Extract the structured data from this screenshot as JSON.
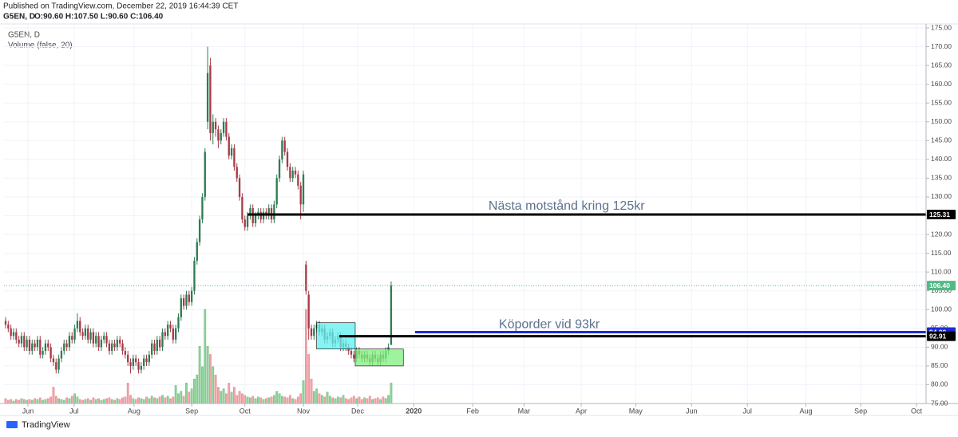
{
  "header": {
    "published": "Published on TradingView.com, December 22, 2019 16:44:39 CET",
    "ohlc": "O:90.60 H:107.50 L:90.60 C:106.40",
    "brand": "TradingView"
  },
  "chart_data": {
    "type": "candlestick",
    "title": "G5EN, D",
    "volume_label": "Volume (false, 20)",
    "up_color": "#2e7d52",
    "down_color": "#a83a48",
    "volume_up_color": "#8fd49a",
    "volume_down_color": "#f2a3aa",
    "grid": true,
    "ylim": [
      75,
      175
    ],
    "yticks": [
      {
        "value": 75,
        "label": "75.00"
      },
      {
        "value": 80,
        "label": "80.00"
      },
      {
        "value": 85,
        "label": "85.00"
      },
      {
        "value": 90,
        "label": "90.00"
      },
      {
        "value": 95,
        "label": "95.00"
      },
      {
        "value": 100,
        "label": "100.00"
      },
      {
        "value": 105,
        "label": "105.00"
      },
      {
        "value": 110,
        "label": "110.00"
      },
      {
        "value": 115,
        "label": "115.00"
      },
      {
        "value": 120,
        "label": "120.00"
      },
      {
        "value": 125,
        "label": "125.00"
      },
      {
        "value": 130,
        "label": "130.00"
      },
      {
        "value": 135,
        "label": "135.00"
      },
      {
        "value": 140,
        "label": "140.00"
      },
      {
        "value": 145,
        "label": "145.00"
      },
      {
        "value": 150,
        "label": "150.00"
      },
      {
        "value": 155,
        "label": "155.00"
      },
      {
        "value": 160,
        "label": "160.00"
      },
      {
        "value": 165,
        "label": "165.00"
      },
      {
        "value": 170,
        "label": "170.00"
      },
      {
        "value": 175,
        "label": "175.00"
      }
    ],
    "xlim": [
      -0.6,
      346.2
    ],
    "xticks": [
      {
        "value": 8.4,
        "label": "Jun"
      },
      {
        "value": 25.8,
        "label": "Jul"
      },
      {
        "value": 48.3,
        "label": "Aug"
      },
      {
        "value": 70,
        "label": "Sep"
      },
      {
        "value": 90,
        "label": "Oct"
      },
      {
        "value": 112,
        "label": "Nov"
      },
      {
        "value": 132.4,
        "label": "Dec"
      },
      {
        "value": 153.5,
        "label": "2020"
      },
      {
        "value": 175.7,
        "label": "Feb"
      },
      {
        "value": 195,
        "label": "Mar"
      },
      {
        "value": 216.5,
        "label": "Apr"
      },
      {
        "value": 237,
        "label": "May"
      },
      {
        "value": 258,
        "label": "Jun"
      },
      {
        "value": 279,
        "label": "Jul"
      },
      {
        "value": 301,
        "label": "Aug"
      },
      {
        "value": 321.6,
        "label": "Sep"
      },
      {
        "value": 342.6,
        "label": "Oct"
      }
    ],
    "ohlc": [
      [
        97,
        98,
        95,
        96
      ],
      [
        96,
        97,
        94,
        95
      ],
      [
        95,
        96,
        92,
        93
      ],
      [
        93,
        95,
        92,
        94
      ],
      [
        94,
        95,
        91,
        92
      ],
      [
        92,
        93,
        90,
        91
      ],
      [
        91,
        94,
        90,
        93
      ],
      [
        93,
        94,
        89,
        90
      ],
      [
        90,
        93,
        89,
        92
      ],
      [
        92,
        93,
        88,
        89
      ],
      [
        89,
        92,
        88,
        91
      ],
      [
        91,
        92,
        89,
        90
      ],
      [
        90,
        93,
        89,
        92
      ],
      [
        92,
        93,
        87,
        88
      ],
      [
        88,
        90,
        87,
        89
      ],
      [
        89,
        92,
        88,
        91
      ],
      [
        91,
        92,
        89,
        90
      ],
      [
        90,
        91,
        86,
        87
      ],
      [
        87,
        88,
        85,
        86
      ],
      [
        86,
        87,
        83,
        84
      ],
      [
        84,
        88,
        83,
        87
      ],
      [
        87,
        90,
        86,
        89
      ],
      [
        89,
        92,
        88,
        91
      ],
      [
        91,
        92,
        89,
        90
      ],
      [
        90,
        94,
        89,
        93
      ],
      [
        93,
        94,
        91,
        92
      ],
      [
        92,
        96,
        91,
        95
      ],
      [
        95,
        99,
        94,
        97
      ],
      [
        97,
        98,
        93,
        94
      ],
      [
        94,
        95,
        92,
        93
      ],
      [
        93,
        96,
        92,
        95
      ],
      [
        95,
        96,
        91,
        92
      ],
      [
        92,
        95,
        91,
        94
      ],
      [
        94,
        95,
        90,
        91
      ],
      [
        91,
        94,
        90,
        93
      ],
      [
        93,
        94,
        89,
        90
      ],
      [
        90,
        93,
        89,
        92
      ],
      [
        92,
        94,
        91,
        93
      ],
      [
        93,
        94,
        90,
        91
      ],
      [
        91,
        92,
        88,
        89
      ],
      [
        89,
        92,
        88,
        91
      ],
      [
        91,
        92,
        89,
        90
      ],
      [
        90,
        93,
        89,
        92
      ],
      [
        92,
        93,
        90,
        91
      ],
      [
        91,
        92,
        88,
        89
      ],
      [
        89,
        90,
        87,
        88
      ],
      [
        88,
        89,
        85,
        86
      ],
      [
        86,
        87,
        83,
        85
      ],
      [
        85,
        88,
        84,
        87
      ],
      [
        87,
        88,
        85,
        86
      ],
      [
        86,
        87,
        83,
        84
      ],
      [
        84,
        86,
        83,
        85
      ],
      [
        85,
        88,
        84,
        87
      ],
      [
        87,
        88,
        85,
        86
      ],
      [
        86,
        89,
        85,
        88
      ],
      [
        88,
        92,
        87,
        91
      ],
      [
        91,
        92,
        88,
        89
      ],
      [
        89,
        93,
        88,
        92
      ],
      [
        92,
        93,
        89,
        90
      ],
      [
        90,
        95,
        89,
        94
      ],
      [
        94,
        95,
        92,
        93
      ],
      [
        93,
        97,
        92,
        96
      ],
      [
        96,
        97,
        94,
        95
      ],
      [
        95,
        96,
        91,
        92
      ],
      [
        92,
        96,
        91,
        95
      ],
      [
        95,
        99,
        94,
        98
      ],
      [
        98,
        104,
        97,
        103
      ],
      [
        103,
        104,
        100,
        101
      ],
      [
        101,
        105,
        100,
        104
      ],
      [
        104,
        105,
        101,
        102
      ],
      [
        102,
        106,
        101,
        105
      ],
      [
        105,
        114,
        104,
        113
      ],
      [
        113,
        119,
        112,
        118
      ],
      [
        118,
        125,
        117,
        124
      ],
      [
        124,
        131,
        123,
        130
      ],
      [
        130,
        143,
        129,
        142
      ],
      [
        150,
        170,
        148,
        163
      ],
      [
        165,
        167,
        145,
        147
      ],
      [
        147,
        152,
        144,
        150
      ],
      [
        150,
        151,
        146,
        148
      ],
      [
        148,
        149,
        143,
        145
      ],
      [
        145,
        148,
        144,
        147
      ],
      [
        147,
        151,
        146,
        150
      ],
      [
        150,
        151,
        145,
        146
      ],
      [
        146,
        147,
        140,
        141
      ],
      [
        141,
        144,
        140,
        143
      ],
      [
        143,
        144,
        137,
        138
      ],
      [
        138,
        139,
        134,
        135
      ],
      [
        135,
        136,
        129,
        130
      ],
      [
        130,
        131,
        123,
        124
      ],
      [
        124,
        125,
        121,
        122
      ],
      [
        122,
        126,
        121,
        125
      ],
      [
        125,
        128,
        124,
        127
      ],
      [
        127,
        128,
        122,
        123
      ],
      [
        123,
        126,
        122,
        125
      ],
      [
        125,
        127,
        124,
        126
      ],
      [
        126,
        127,
        123,
        124
      ],
      [
        124,
        127,
        123,
        126
      ],
      [
        126,
        127,
        124,
        125
      ],
      [
        125,
        128,
        124,
        127
      ],
      [
        127,
        128,
        123,
        124
      ],
      [
        124,
        129,
        123,
        128
      ],
      [
        128,
        136,
        127,
        135
      ],
      [
        135,
        141,
        134,
        140
      ],
      [
        140,
        146,
        139,
        145
      ],
      [
        145,
        146,
        141,
        142
      ],
      [
        142,
        143,
        137,
        138
      ],
      [
        138,
        139,
        134,
        135
      ],
      [
        135,
        138,
        134,
        137
      ],
      [
        137,
        138,
        135,
        136
      ],
      [
        136,
        137,
        132,
        133
      ],
      [
        133,
        134,
        124,
        128
      ],
      [
        128,
        137,
        126,
        136
      ],
      [
        112,
        113,
        104,
        105
      ],
      [
        104,
        105,
        92,
        95
      ],
      [
        95,
        96,
        92,
        93
      ],
      [
        93,
        96,
        92,
        95
      ],
      [
        95,
        97,
        94,
        96
      ],
      [
        96,
        97,
        93,
        94
      ],
      [
        94,
        96,
        93,
        95
      ],
      [
        95,
        96,
        91,
        92
      ],
      [
        92,
        94,
        91,
        93
      ],
      [
        93,
        95,
        92,
        94
      ],
      [
        94,
        95,
        90,
        91
      ],
      [
        91,
        93,
        90,
        92
      ],
      [
        92,
        94,
        91,
        93
      ],
      [
        93,
        94,
        89,
        90
      ],
      [
        90,
        92,
        89,
        91
      ],
      [
        91,
        92,
        89,
        90
      ],
      [
        90,
        91,
        88,
        89
      ],
      [
        89,
        90,
        87,
        88
      ],
      [
        88,
        89,
        86,
        87
      ],
      [
        87,
        90,
        86,
        89
      ],
      [
        89,
        90,
        87,
        88
      ],
      [
        88,
        89,
        86,
        87
      ],
      [
        87,
        89,
        86,
        88
      ],
      [
        88,
        89,
        86,
        87
      ],
      [
        87,
        88,
        85,
        86
      ],
      [
        86,
        89,
        85,
        88
      ],
      [
        88,
        89,
        86,
        87
      ],
      [
        87,
        88,
        85,
        86
      ],
      [
        86,
        89,
        85,
        88
      ],
      [
        88,
        89,
        86,
        87
      ],
      [
        87,
        90,
        86,
        89
      ],
      [
        89,
        91,
        88,
        90
      ],
      [
        90.6,
        107.5,
        90.6,
        106.4
      ]
    ],
    "volume": [
      6,
      4,
      5,
      3,
      5,
      4,
      6,
      5,
      4,
      5,
      4,
      6,
      5,
      7,
      4,
      5,
      6,
      8,
      20,
      9,
      6,
      5,
      4,
      7,
      6,
      9,
      12,
      8,
      5,
      4,
      5,
      6,
      4,
      7,
      5,
      6,
      4,
      5,
      6,
      7,
      5,
      4,
      6,
      5,
      7,
      8,
      25,
      10,
      6,
      5,
      7,
      6,
      5,
      8,
      6,
      9,
      7,
      6,
      8,
      10,
      7,
      9,
      6,
      8,
      22,
      12,
      15,
      9,
      25,
      14,
      18,
      30,
      35,
      70,
      45,
      115,
      70,
      60,
      45,
      35,
      20,
      15,
      18,
      12,
      25,
      14,
      20,
      10,
      15,
      12,
      10,
      8,
      7,
      9,
      6,
      8,
      7,
      5,
      6,
      7,
      8,
      10,
      15,
      12,
      9,
      8,
      7,
      10,
      6,
      5,
      8,
      12,
      28,
      115,
      60,
      30,
      15,
      18,
      12,
      10,
      8,
      14,
      9,
      7,
      6,
      8,
      7,
      10,
      6,
      5,
      7,
      9,
      6,
      8,
      5,
      7,
      6,
      9,
      5,
      6,
      7,
      5,
      8,
      6,
      10,
      25
    ],
    "lines": [
      {
        "price": {
          "value": 106.4,
          "label": "106.40"
        },
        "from": -0.6,
        "color": "#53b987",
        "dashed": true
      },
      {
        "price": 125.31,
        "from": 91,
        "color": "#000000"
      },
      {
        "price": {
          "value": 94,
          "label": "94.00"
        },
        "from": 154,
        "color": "#1e2bd6"
      },
      {
        "price": 92.91,
        "from": 125.5,
        "color": "#000000"
      }
    ],
    "rectangles": [
      {
        "top": 96.5,
        "bottom": 89.5,
        "from": 117,
        "to": 131.5,
        "color": "#5ff0f0"
      },
      {
        "top": 89.5,
        "bottom": 85,
        "from": 131.5,
        "to": 149.6,
        "color": "#7ef07e"
      }
    ],
    "annotations": [
      {
        "text": "Nästa motstånd kring 125kr",
        "x": 211,
        "price": 127.5
      },
      {
        "text": "Köporder vid 93kr",
        "x": 204.5,
        "price": 96
      }
    ]
  }
}
